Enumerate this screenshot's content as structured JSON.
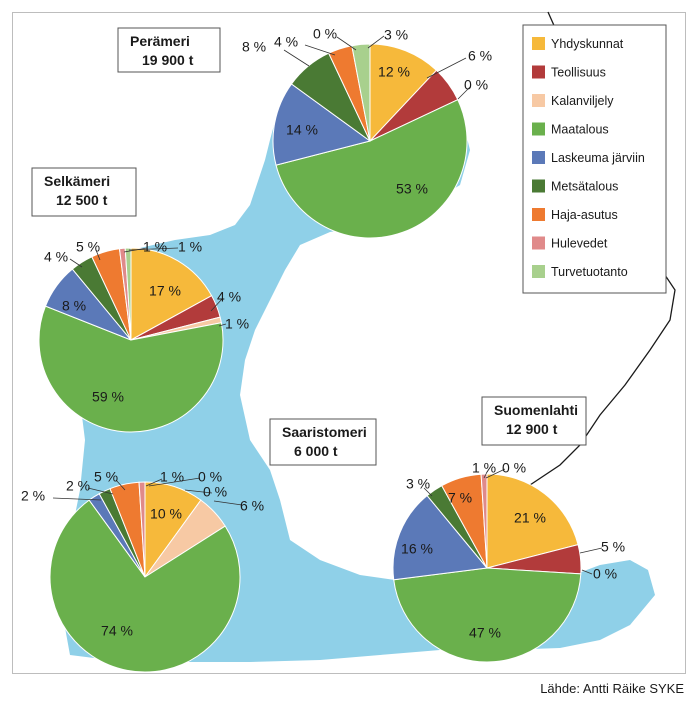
{
  "source": "Lähde: Antti Räike SYKE",
  "colors": [
    "#f6b93b",
    "#b23b3b",
    "#f7c9a4",
    "#6ab04c",
    "#5b79b8",
    "#4a7a34",
    "#ee7a30",
    "#e08a8a",
    "#a8d08d"
  ],
  "legend": [
    "Yhdyskunnat",
    "Teollisuus",
    "Kalanviljely",
    "Maatalous",
    "Laskeuma järviin",
    "Metsätalous",
    "Haja-asutus",
    "Hulevedet",
    "Turvetuotanto"
  ],
  "chart_data": [
    {
      "type": "pie",
      "name": "Perämeri",
      "total": "19 900 t",
      "categories": [
        "Yhdyskunnat",
        "Teollisuus",
        "Kalanviljely",
        "Maatalous",
        "Laskeuma järviin",
        "Metsätalous",
        "Haja-asutus",
        "Hulevedet",
        "Turvetuotanto"
      ],
      "values": [
        12,
        6,
        0,
        53,
        14,
        8,
        4,
        0,
        3
      ],
      "labels": [
        "12 %",
        "6 %",
        "0 %",
        "53 %",
        "14 %",
        "8 %",
        "4 %",
        "0 %",
        "3 %"
      ]
    },
    {
      "type": "pie",
      "name": "Selkämeri",
      "total": "12 500 t",
      "categories": [
        "Yhdyskunnat",
        "Teollisuus",
        "Kalanviljely",
        "Maatalous",
        "Laskeuma järviin",
        "Metsätalous",
        "Haja-asutus",
        "Hulevedet",
        "Turvetuotanto"
      ],
      "values": [
        17,
        4,
        1,
        59,
        8,
        4,
        5,
        1,
        1
      ],
      "labels": [
        "17 %",
        "4 %",
        "1 %",
        "59 %",
        "8 %",
        "4 %",
        "5 %",
        "1 %",
        "1 %"
      ]
    },
    {
      "type": "pie",
      "name": "Saaristomeri",
      "total": "6 000 t",
      "categories": [
        "Yhdyskunnat",
        "Teollisuus",
        "Kalanviljely",
        "Maatalous",
        "Laskeuma järviin",
        "Metsätalous",
        "Haja-asutus",
        "Hulevedet",
        "Turvetuotanto"
      ],
      "values": [
        10,
        0,
        6,
        74,
        2,
        2,
        5,
        1,
        0
      ],
      "labels": [
        "10 %",
        "0 %",
        "6 %",
        "74 %",
        "2 %",
        "2 %",
        "5 %",
        "1 %",
        "0 %"
      ]
    },
    {
      "type": "pie",
      "name": "Suomenlahti",
      "total": "12 900 t",
      "categories": [
        "Yhdyskunnat",
        "Teollisuus",
        "Kalanviljely",
        "Maatalous",
        "Laskeuma järviin",
        "Metsätalous",
        "Haja-asutus",
        "Hulevedet",
        "Turvetuotanto"
      ],
      "values": [
        21,
        5,
        0,
        47,
        16,
        3,
        7,
        1,
        0
      ],
      "labels": [
        "21 %",
        "5 %",
        "0 %",
        "47 %",
        "16 %",
        "3 %",
        "7 %",
        "1 %",
        "0 %"
      ]
    }
  ]
}
